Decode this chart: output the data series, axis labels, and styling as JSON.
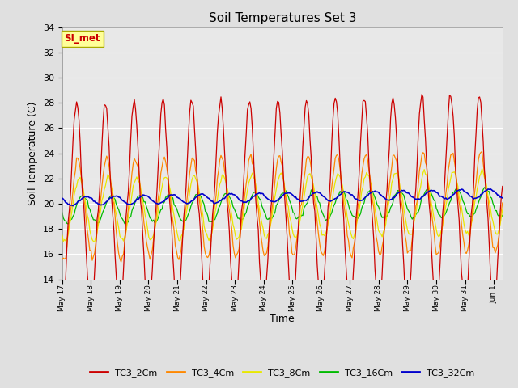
{
  "title": "Soil Temperatures Set 3",
  "xlabel": "Time",
  "ylabel": "Soil Temperature (C)",
  "ylim": [
    14,
    34
  ],
  "yticks": [
    14,
    16,
    18,
    20,
    22,
    24,
    26,
    28,
    30,
    32,
    34
  ],
  "background_color": "#e0e0e0",
  "plot_bg_color": "#e8e8e8",
  "series": [
    "TC3_2Cm",
    "TC3_4Cm",
    "TC3_8Cm",
    "TC3_16Cm",
    "TC3_32Cm"
  ],
  "colors": [
    "#cc0000",
    "#ff8800",
    "#e8e800",
    "#00bb00",
    "#0000cc"
  ],
  "annotation_text": "SI_met",
  "annotation_color": "#cc0000",
  "annotation_bg": "#ffff99",
  "annotation_border": "#aaaa00",
  "xlabels": [
    "May 17",
    "May 18",
    "May 19",
    "May 20",
    "May 21",
    "May 22",
    "May 23",
    "May 24",
    "May 25",
    "May 26",
    "May 27",
    "May 28",
    "May 29",
    "May 30",
    "May 31",
    "Jun 1"
  ],
  "amp2_base": 8.5,
  "amp4_base": 4.0,
  "amp8_base": 2.5,
  "amp16_base": 1.1,
  "amp32_base": 0.35,
  "base_temp": 19.5,
  "trend_rate": 0.04
}
